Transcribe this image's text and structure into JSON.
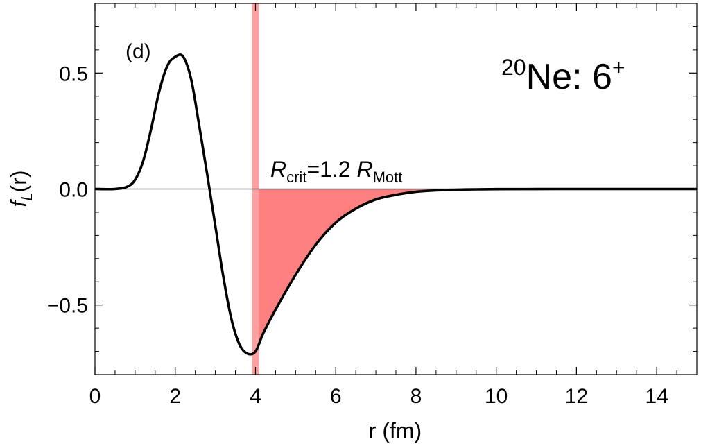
{
  "chart_data": {
    "type": "line",
    "title": "",
    "annotation_title": {
      "mass_number": "20",
      "element": "Ne: 6",
      "parity": "+"
    },
    "panel_label": "(d)",
    "xlabel": "r (fm)",
    "ylabel": {
      "main": "f",
      "subscript": "L",
      "suffix": "(r)"
    },
    "xlim": [
      0,
      15
    ],
    "ylim": [
      -0.8,
      0.8
    ],
    "xticks": [
      0,
      2,
      4,
      6,
      8,
      10,
      12,
      14
    ],
    "xtick_labels": [
      "0",
      "2",
      "4",
      "6",
      "8",
      "10",
      "12",
      "14"
    ],
    "yticks": [
      -0.5,
      0.0,
      0.5
    ],
    "ytick_labels": [
      "−0.5",
      "0.0",
      "0.5"
    ],
    "critical_radius": {
      "value": 4.0,
      "label_R": "R",
      "label_crit": "crit",
      "label_mid": "=1.2 ",
      "label_R2": "R",
      "label_mott": "Mott"
    },
    "series": [
      {
        "x": [
          0,
          0.5,
          0.8,
          1.0,
          1.2,
          1.4,
          1.6,
          1.8,
          2.0,
          2.2,
          2.4,
          2.6,
          2.8,
          3.0,
          3.2,
          3.4,
          3.6,
          3.8,
          4.0,
          4.2,
          4.5,
          5.0,
          5.5,
          6.0,
          6.5,
          7.0,
          7.5,
          8.0,
          8.5,
          9.0,
          9.5,
          10.0,
          11.0,
          12.0,
          13.0,
          14.0,
          15.0
        ],
        "y": [
          0.0,
          0.0,
          0.01,
          0.04,
          0.12,
          0.26,
          0.42,
          0.53,
          0.57,
          0.57,
          0.47,
          0.27,
          0.06,
          -0.16,
          -0.38,
          -0.56,
          -0.67,
          -0.71,
          -0.7,
          -0.62,
          -0.52,
          -0.37,
          -0.24,
          -0.145,
          -0.085,
          -0.045,
          -0.025,
          -0.012,
          -0.006,
          -0.003,
          -0.0015,
          -0.0007,
          -0.0002,
          0.0,
          0.0,
          0.0,
          0.0
        ]
      }
    ],
    "colors": {
      "curve": "#000000",
      "fill": "#ff8080",
      "vline": "#ffa0a0",
      "zero_line": "#000000"
    },
    "grid": false,
    "shaded_region": "between curve and zero for r >= R_crit"
  }
}
